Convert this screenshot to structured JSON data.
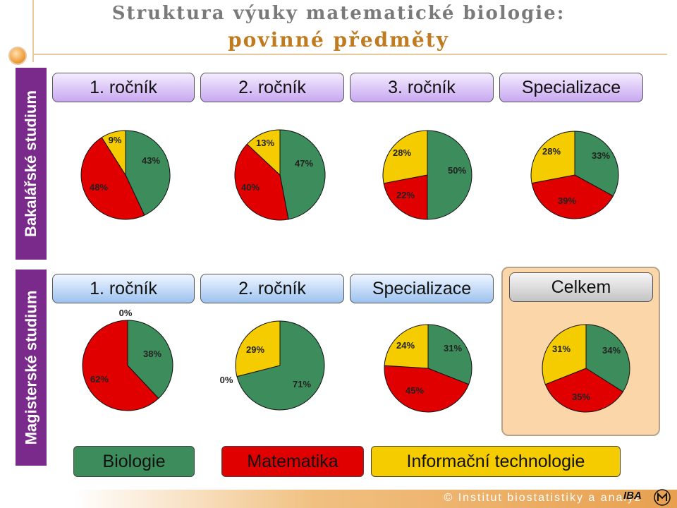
{
  "title": {
    "line1": "Struktura výuky matematické biologie:",
    "line2": "povinné předměty"
  },
  "sidebar": {
    "bachelor": "Bakalářské studium",
    "master": "Magisterské studium"
  },
  "colors": {
    "biology": "#3d8c5b",
    "mathematics": "#e00000",
    "it": "#f5cc00"
  },
  "legend": {
    "biology": "Biologie",
    "mathematics": "Matematika",
    "it": "Informační technologie"
  },
  "footer": {
    "text": "© Institut biostatistiky a analýz",
    "logo": "IBA"
  },
  "chart_data": [
    {
      "type": "pie",
      "title": "1. ročník",
      "group": "Bakalářské studium",
      "categories": [
        "Biologie",
        "Matematika",
        "Informační technologie"
      ],
      "values": [
        43,
        48,
        9
      ],
      "labels": [
        "43%",
        "48%",
        "9%"
      ]
    },
    {
      "type": "pie",
      "title": "2. ročník",
      "group": "Bakalářské studium",
      "categories": [
        "Biologie",
        "Matematika",
        "Informační technologie"
      ],
      "values": [
        47,
        40,
        13
      ],
      "labels": [
        "47%",
        "40%",
        "13%"
      ]
    },
    {
      "type": "pie",
      "title": "3. ročník",
      "group": "Bakalářské studium",
      "categories": [
        "Biologie",
        "Matematika",
        "Informační technologie"
      ],
      "values": [
        50,
        22,
        28
      ],
      "labels": [
        "50%",
        "22%",
        "28%"
      ]
    },
    {
      "type": "pie",
      "title": "Specializace",
      "group": "Bakalářské studium",
      "categories": [
        "Biologie",
        "Matematika",
        "Informační technologie"
      ],
      "values": [
        33,
        39,
        28
      ],
      "labels": [
        "33%",
        "39%",
        "28%"
      ]
    },
    {
      "type": "pie",
      "title": "1. ročník",
      "group": "Magisterské studium",
      "categories": [
        "Biologie",
        "Matematika",
        "Informační technologie"
      ],
      "values": [
        38,
        62,
        0
      ],
      "labels": [
        "38%",
        "62%",
        "0%"
      ]
    },
    {
      "type": "pie",
      "title": "2. ročník",
      "group": "Magisterské studium",
      "categories": [
        "Biologie",
        "Matematika",
        "Informační technologie"
      ],
      "values": [
        71,
        0,
        29
      ],
      "labels": [
        "71%",
        "0%",
        "29%"
      ]
    },
    {
      "type": "pie",
      "title": "Specializace",
      "group": "Magisterské studium",
      "categories": [
        "Biologie",
        "Matematika",
        "Informační technologie"
      ],
      "values": [
        31,
        45,
        24
      ],
      "labels": [
        "31%",
        "45%",
        "24%"
      ]
    },
    {
      "type": "pie",
      "title": "Celkem",
      "group": "Magisterské studium",
      "categories": [
        "Biologie",
        "Matematika",
        "Informační technologie"
      ],
      "values": [
        34,
        35,
        31
      ],
      "labels": [
        "34%",
        "35%",
        "31%"
      ]
    }
  ]
}
